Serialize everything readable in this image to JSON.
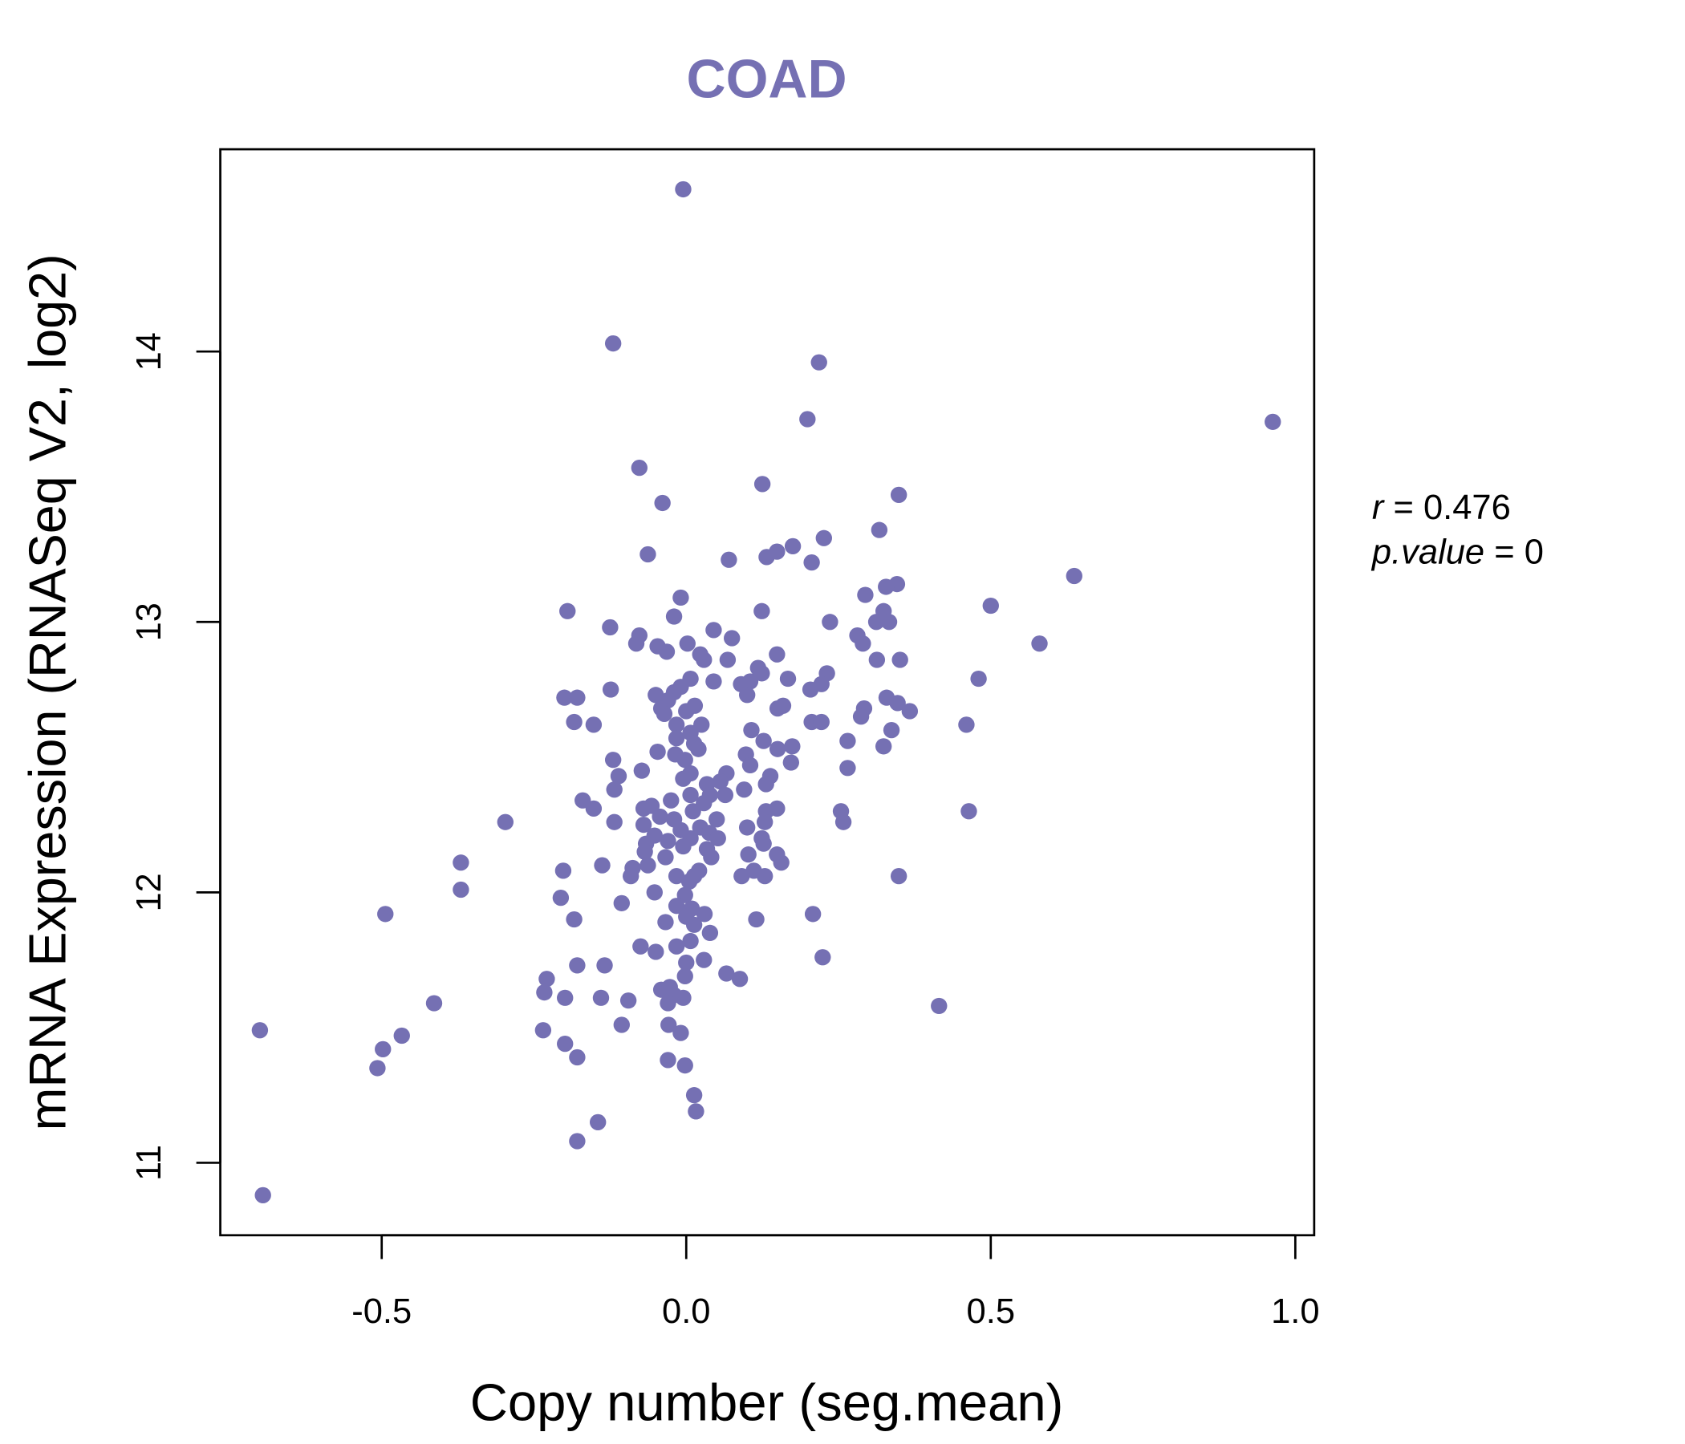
{
  "chart_data": {
    "type": "scatter",
    "title": "COAD",
    "xlabel": "Copy number (seg.mean)",
    "ylabel": "mRNA Expression (RNASeq V2, log2)",
    "xlim": [
      -0.765,
      1.031
    ],
    "ylim": [
      10.732,
      14.748
    ],
    "xticks": [
      -0.5,
      0.0,
      0.5,
      1.0
    ],
    "xtick_labels": [
      "-0.5",
      "0.0",
      "0.5",
      "1.0"
    ],
    "yticks": [
      11,
      12,
      13,
      14
    ],
    "ytick_labels": [
      "11",
      "12",
      "13",
      "14"
    ],
    "grid": false,
    "point_color": "#7570B3",
    "title_color": "#7570B3",
    "annotation": {
      "r_label": "r",
      "r_value": "0.476",
      "p_label": "p.value",
      "p_value": "0"
    },
    "points": [
      [
        -0.005,
        14.6
      ],
      [
        -0.12,
        14.03
      ],
      [
        0.218,
        13.96
      ],
      [
        0.199,
        13.75
      ],
      [
        0.963,
        13.74
      ],
      [
        -0.077,
        13.57
      ],
      [
        0.125,
        13.51
      ],
      [
        0.349,
        13.47
      ],
      [
        -0.039,
        13.44
      ],
      [
        0.317,
        13.34
      ],
      [
        0.226,
        13.31
      ],
      [
        0.175,
        13.28
      ],
      [
        0.149,
        13.26
      ],
      [
        0.132,
        13.24
      ],
      [
        -0.063,
        13.25
      ],
      [
        0.07,
        13.23
      ],
      [
        0.206,
        13.22
      ],
      [
        0.637,
        13.17
      ],
      [
        0.346,
        13.14
      ],
      [
        0.328,
        13.13
      ],
      [
        -0.009,
        13.09
      ],
      [
        0.294,
        13.1
      ],
      [
        0.5,
        13.06
      ],
      [
        -0.195,
        13.04
      ],
      [
        0.124,
        13.04
      ],
      [
        0.324,
        13.04
      ],
      [
        -0.02,
        13.02
      ],
      [
        0.312,
        13.0
      ],
      [
        0.333,
        13.0
      ],
      [
        0.236,
        13.0
      ],
      [
        -0.125,
        12.98
      ],
      [
        0.045,
        12.97
      ],
      [
        -0.077,
        12.95
      ],
      [
        0.075,
        12.94
      ],
      [
        0.281,
        12.95
      ],
      [
        -0.082,
        12.92
      ],
      [
        0.29,
        12.92
      ],
      [
        0.58,
        12.92
      ],
      [
        0.002,
        12.92
      ],
      [
        -0.047,
        12.91
      ],
      [
        -0.032,
        12.89
      ],
      [
        0.023,
        12.88
      ],
      [
        0.149,
        12.88
      ],
      [
        0.029,
        12.86
      ],
      [
        0.068,
        12.86
      ],
      [
        0.313,
        12.86
      ],
      [
        0.351,
        12.86
      ],
      [
        0.118,
        12.83
      ],
      [
        0.124,
        12.81
      ],
      [
        0.231,
        12.81
      ],
      [
        0.167,
        12.79
      ],
      [
        0.007,
        12.79
      ],
      [
        0.48,
        12.79
      ],
      [
        0.105,
        12.78
      ],
      [
        0.045,
        12.78
      ],
      [
        0.09,
        12.77
      ],
      [
        -0.009,
        12.76
      ],
      [
        -0.124,
        12.75
      ],
      [
        0.204,
        12.75
      ],
      [
        0.222,
        12.77
      ],
      [
        -0.02,
        12.74
      ],
      [
        0.1,
        12.73
      ],
      [
        -0.05,
        12.73
      ],
      [
        0.329,
        12.72
      ],
      [
        -0.2,
        12.72
      ],
      [
        -0.179,
        12.72
      ],
      [
        -0.03,
        12.71
      ],
      [
        0.014,
        12.69
      ],
      [
        -0.041,
        12.68
      ],
      [
        0.159,
        12.69
      ],
      [
        0.292,
        12.68
      ],
      [
        0.15,
        12.68
      ],
      [
        0.347,
        12.7
      ],
      [
        0.367,
        12.67
      ],
      [
        0.0,
        12.67
      ],
      [
        -0.036,
        12.66
      ],
      [
        0.287,
        12.65
      ],
      [
        0.025,
        12.62
      ],
      [
        -0.184,
        12.63
      ],
      [
        -0.152,
        12.62
      ],
      [
        0.206,
        12.63
      ],
      [
        0.222,
        12.63
      ],
      [
        0.46,
        12.62
      ],
      [
        -0.016,
        12.62
      ],
      [
        0.107,
        12.6
      ],
      [
        0.337,
        12.6
      ],
      [
        0.007,
        12.59
      ],
      [
        -0.016,
        12.57
      ],
      [
        0.127,
        12.56
      ],
      [
        0.265,
        12.56
      ],
      [
        0.013,
        12.55
      ],
      [
        0.324,
        12.54
      ],
      [
        0.174,
        12.54
      ],
      [
        -0.047,
        12.52
      ],
      [
        0.02,
        12.53
      ],
      [
        0.15,
        12.53
      ],
      [
        -0.018,
        12.51
      ],
      [
        0.098,
        12.51
      ],
      [
        -0.002,
        12.49
      ],
      [
        -0.12,
        12.49
      ],
      [
        0.172,
        12.48
      ],
      [
        0.105,
        12.47
      ],
      [
        0.265,
        12.46
      ],
      [
        -0.073,
        12.45
      ],
      [
        0.007,
        12.44
      ],
      [
        0.066,
        12.44
      ],
      [
        -0.111,
        12.43
      ],
      [
        0.138,
        12.43
      ],
      [
        -0.005,
        12.42
      ],
      [
        0.056,
        12.41
      ],
      [
        0.131,
        12.4
      ],
      [
        0.034,
        12.4
      ],
      [
        -0.118,
        12.38
      ],
      [
        0.095,
        12.38
      ],
      [
        0.007,
        12.36
      ],
      [
        0.039,
        12.36
      ],
      [
        0.064,
        12.36
      ],
      [
        -0.17,
        12.34
      ],
      [
        -0.025,
        12.34
      ],
      [
        0.029,
        12.33
      ],
      [
        -0.057,
        12.32
      ],
      [
        -0.152,
        12.31
      ],
      [
        -0.07,
        12.31
      ],
      [
        0.149,
        12.31
      ],
      [
        0.131,
        12.3
      ],
      [
        0.011,
        12.3
      ],
      [
        0.254,
        12.3
      ],
      [
        0.464,
        12.3
      ],
      [
        -0.043,
        12.28
      ],
      [
        -0.297,
        12.26
      ],
      [
        -0.118,
        12.26
      ],
      [
        -0.02,
        12.27
      ],
      [
        0.05,
        12.27
      ],
      [
        0.129,
        12.26
      ],
      [
        0.258,
        12.26
      ],
      [
        -0.07,
        12.25
      ],
      [
        0.1,
        12.24
      ],
      [
        0.023,
        12.24
      ],
      [
        -0.009,
        12.23
      ],
      [
        0.038,
        12.22
      ],
      [
        -0.052,
        12.21
      ],
      [
        0.124,
        12.2
      ],
      [
        0.052,
        12.2
      ],
      [
        0.007,
        12.2
      ],
      [
        -0.03,
        12.19
      ],
      [
        -0.066,
        12.18
      ],
      [
        0.127,
        12.18
      ],
      [
        -0.005,
        12.17
      ],
      [
        0.034,
        12.16
      ],
      [
        -0.068,
        12.15
      ],
      [
        0.149,
        12.14
      ],
      [
        0.102,
        12.14
      ],
      [
        -0.034,
        12.13
      ],
      [
        0.041,
        12.13
      ],
      [
        0.156,
        12.11
      ],
      [
        -0.37,
        12.11
      ],
      [
        -0.063,
        12.1
      ],
      [
        -0.138,
        12.1
      ],
      [
        -0.088,
        12.09
      ],
      [
        0.111,
        12.08
      ],
      [
        0.021,
        12.08
      ],
      [
        -0.202,
        12.08
      ],
      [
        0.091,
        12.06
      ],
      [
        0.129,
        12.06
      ],
      [
        0.349,
        12.06
      ],
      [
        -0.091,
        12.06
      ],
      [
        -0.016,
        12.06
      ],
      [
        0.013,
        12.06
      ],
      [
        0.005,
        12.04
      ],
      [
        -0.37,
        12.01
      ],
      [
        -0.052,
        12.0
      ],
      [
        -0.002,
        11.99
      ],
      [
        -0.206,
        11.98
      ],
      [
        -0.106,
        11.96
      ],
      [
        -0.016,
        11.95
      ],
      [
        0.009,
        11.94
      ],
      [
        -0.494,
        11.92
      ],
      [
        0.208,
        11.92
      ],
      [
        0.03,
        11.92
      ],
      [
        0.0,
        11.91
      ],
      [
        -0.034,
        11.89
      ],
      [
        -0.184,
        11.9
      ],
      [
        0.115,
        11.9
      ],
      [
        0.013,
        11.88
      ],
      [
        0.039,
        11.85
      ],
      [
        -0.075,
        11.8
      ],
      [
        -0.016,
        11.8
      ],
      [
        -0.05,
        11.78
      ],
      [
        0.007,
        11.82
      ],
      [
        0.224,
        11.76
      ],
      [
        0.029,
        11.75
      ],
      [
        0.0,
        11.74
      ],
      [
        -0.179,
        11.73
      ],
      [
        -0.134,
        11.73
      ],
      [
        0.066,
        11.7
      ],
      [
        0.088,
        11.68
      ],
      [
        -0.002,
        11.69
      ],
      [
        -0.229,
        11.68
      ],
      [
        -0.041,
        11.64
      ],
      [
        -0.027,
        11.65
      ],
      [
        -0.02,
        11.62
      ],
      [
        -0.233,
        11.63
      ],
      [
        -0.199,
        11.61
      ],
      [
        -0.14,
        11.61
      ],
      [
        -0.005,
        11.61
      ],
      [
        -0.095,
        11.6
      ],
      [
        -0.03,
        11.59
      ],
      [
        -0.414,
        11.59
      ],
      [
        0.415,
        11.58
      ],
      [
        -0.106,
        11.51
      ],
      [
        -0.029,
        11.51
      ],
      [
        -0.7,
        11.49
      ],
      [
        -0.235,
        11.49
      ],
      [
        -0.009,
        11.48
      ],
      [
        -0.467,
        11.47
      ],
      [
        -0.199,
        11.44
      ],
      [
        -0.498,
        11.42
      ],
      [
        -0.179,
        11.39
      ],
      [
        -0.03,
        11.38
      ],
      [
        -0.002,
        11.36
      ],
      [
        -0.507,
        11.35
      ],
      [
        0.013,
        11.25
      ],
      [
        0.016,
        11.19
      ],
      [
        -0.145,
        11.15
      ],
      [
        -0.179,
        11.08
      ],
      [
        -0.695,
        10.88
      ]
    ]
  }
}
